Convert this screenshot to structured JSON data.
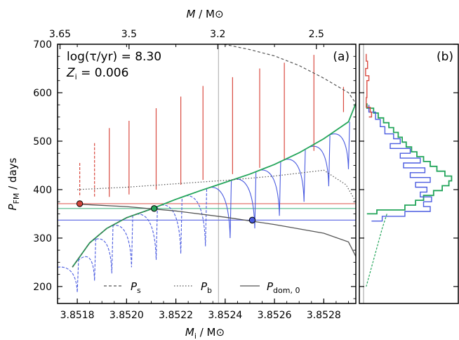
{
  "chart_data": [
    {
      "type": "line",
      "panel_label": "(a)",
      "annotation_line1": "log(τ/yr) = 8.30",
      "annotation_line2_main": "Z",
      "annotation_line2_sub": "i",
      "annotation_line2_rest": " = 0.006",
      "xlabel_main": "M",
      "xlabel_sub": "i",
      "xlabel_rest": " / M",
      "xlabel_unit_symbol": "⊙",
      "ylabel_main": "P",
      "ylabel_sub": "FM",
      "ylabel_rest": " / days",
      "top_xlabel_main": "M",
      "top_xlabel_rest": " / M",
      "top_xlabel_unit_symbol": "⊙",
      "xlim": [
        3.85172,
        3.85293
      ],
      "ylim": [
        165,
        700
      ],
      "xticks": [
        3.8518,
        3.852,
        3.8522,
        3.8524,
        3.8526,
        3.8528
      ],
      "xtick_labels": [
        "3.8518",
        "3.8520",
        "3.8522",
        "3.8524",
        "3.8526",
        "3.8528"
      ],
      "yticks": [
        200,
        300,
        400,
        500,
        600,
        700
      ],
      "ytick_labels": [
        "200",
        "300",
        "400",
        "500",
        "600",
        "700"
      ],
      "top_xticks": [
        3.85173,
        3.85201,
        3.85237,
        3.85277
      ],
      "top_xtick_labels": [
        "3.65",
        "3.5",
        "3.2",
        "2.5"
      ],
      "vertical_line_x": 3.852373,
      "hlines": [
        {
          "y": 371,
          "color": "#e0665e"
        },
        {
          "y": 361,
          "color": "#4fb887"
        },
        {
          "y": 337,
          "color": "#6a74e6"
        }
      ],
      "markers": [
        {
          "x": 3.85181,
          "y": 371,
          "fill": "#d0453c"
        },
        {
          "x": 3.852112,
          "y": 361,
          "fill": "#2aa55b"
        },
        {
          "x": 3.85251,
          "y": 337,
          "fill": "#4a5be0"
        }
      ],
      "ps_curve": [
        [
          3.85178,
          240
        ],
        [
          3.85185,
          290
        ],
        [
          3.85192,
          320
        ],
        [
          3.852,
          342
        ],
        [
          3.8521,
          360
        ],
        [
          3.8522,
          380
        ],
        [
          3.8523,
          398
        ],
        [
          3.8524,
          415
        ],
        [
          3.8525,
          432
        ],
        [
          3.8526,
          452
        ],
        [
          3.8527,
          476
        ],
        [
          3.8528,
          505
        ],
        [
          3.8529,
          540
        ],
        [
          3.85293,
          578
        ]
      ],
      "pb_curve": [
        [
          3.8518,
          400
        ],
        [
          3.852,
          405
        ],
        [
          3.8522,
          412
        ],
        [
          3.8524,
          419
        ],
        [
          3.8526,
          428
        ],
        [
          3.8528,
          440
        ],
        [
          3.85289,
          410
        ],
        [
          3.85293,
          375
        ]
      ],
      "pdom_curve": [
        [
          3.8518,
          370
        ],
        [
          3.852,
          365
        ],
        [
          3.8522,
          356
        ],
        [
          3.8524,
          343
        ],
        [
          3.8526,
          328
        ],
        [
          3.8528,
          310
        ],
        [
          3.8529,
          292
        ],
        [
          3.85293,
          262
        ]
      ],
      "upper_curve": [
        [
          3.852395,
          700
        ],
        [
          3.8525,
          689
        ],
        [
          3.8526,
          676
        ],
        [
          3.8527,
          656
        ],
        [
          3.8528,
          630
        ],
        [
          3.8529,
          600
        ],
        [
          3.85293,
          578
        ]
      ],
      "red_spikes": [
        {
          "x": 3.85181,
          "top": 455,
          "bottom": 385
        },
        {
          "x": 3.85187,
          "top": 496,
          "bottom": 385
        },
        {
          "x": 3.85193,
          "top": 527,
          "bottom": 385
        },
        {
          "x": 3.85201,
          "top": 542,
          "bottom": 390
        },
        {
          "x": 3.85212,
          "top": 568,
          "bottom": 400
        },
        {
          "x": 3.85222,
          "top": 592,
          "bottom": 410
        },
        {
          "x": 3.85231,
          "top": 614,
          "bottom": 420
        },
        {
          "x": 3.85243,
          "top": 632,
          "bottom": 432
        },
        {
          "x": 3.85254,
          "top": 650,
          "bottom": 445
        },
        {
          "x": 3.85264,
          "top": 662,
          "bottom": 460
        },
        {
          "x": 3.85276,
          "top": 678,
          "bottom": 480
        },
        {
          "x": 3.85288,
          "top": 612,
          "bottom": 560
        }
      ],
      "blue_dips": [
        {
          "x": 3.8518,
          "min": 188
        },
        {
          "x": 3.85187,
          "min": 212
        },
        {
          "x": 3.85194,
          "min": 227
        },
        {
          "x": 3.85202,
          "min": 240
        },
        {
          "x": 3.85212,
          "min": 255
        },
        {
          "x": 3.85222,
          "min": 268
        },
        {
          "x": 3.85232,
          "min": 283
        },
        {
          "x": 3.85242,
          "min": 300
        },
        {
          "x": 3.85252,
          "min": 320
        },
        {
          "x": 3.85262,
          "min": 346
        },
        {
          "x": 3.85272,
          "min": 375
        },
        {
          "x": 3.85282,
          "min": 407
        },
        {
          "x": 3.8529,
          "min": 442
        }
      ],
      "colors": {
        "green": "#23a55a",
        "blue": "#4a5be0",
        "red": "#d94a40",
        "gray_dark": "#555555",
        "gray_vline": "#b8b8b8"
      },
      "legend": [
        {
          "label_main": "P",
          "label_sub": "s",
          "style": "dashed"
        },
        {
          "label_main": "P",
          "label_sub": "b",
          "style": "dotted"
        },
        {
          "label_main": "P",
          "label_sub": "dom, 0",
          "style": "solid"
        }
      ],
      "legend_position": "bottom"
    },
    {
      "type": "histogram",
      "panel_label": "(b)",
      "ylim": [
        165,
        700
      ],
      "vertical_line_position": "left",
      "series": [
        {
          "color": "#23a55a",
          "bins": [
            [
              578,
              5
            ],
            [
              568,
              15
            ],
            [
              558,
              22
            ],
            [
              548,
              30
            ],
            [
              538,
              38
            ],
            [
              528,
              45
            ],
            [
              518,
              52
            ],
            [
              508,
              58
            ],
            [
              498,
              64
            ],
            [
              488,
              72
            ],
            [
              478,
              80
            ],
            [
              468,
              90
            ],
            [
              458,
              100
            ],
            [
              448,
              110
            ],
            [
              438,
              122
            ],
            [
              428,
              132
            ],
            [
              418,
              128
            ],
            [
              408,
              118
            ],
            [
              398,
              105
            ],
            [
              388,
              90
            ],
            [
              378,
              78
            ],
            [
              368,
              62
            ],
            [
              358,
              20
            ],
            [
              350,
              5
            ]
          ]
        },
        {
          "color": "#4a5be0",
          "bins": [
            [
              575,
              8
            ],
            [
              560,
              18
            ],
            [
              545,
              25
            ],
            [
              530,
              32
            ],
            [
              515,
              45
            ],
            [
              505,
              55
            ],
            [
              495,
              40
            ],
            [
              485,
              70
            ],
            [
              475,
              55
            ],
            [
              465,
              85
            ],
            [
              455,
              60
            ],
            [
              445,
              92
            ],
            [
              435,
              70
            ],
            [
              425,
              100
            ],
            [
              415,
              78
            ],
            [
              405,
              95
            ],
            [
              395,
              85
            ],
            [
              385,
              102
            ],
            [
              375,
              90
            ],
            [
              365,
              100
            ],
            [
              355,
              62
            ],
            [
              345,
              28
            ],
            [
              335,
              12
            ]
          ]
        },
        {
          "color": "#d94a40",
          "bins": [
            [
              680,
              4
            ],
            [
              665,
              6
            ],
            [
              650,
              3
            ],
            [
              635,
              8
            ],
            [
              625,
              5
            ],
            [
              590,
              4
            ],
            [
              570,
              10
            ],
            [
              560,
              12
            ],
            [
              550,
              8
            ]
          ]
        }
      ],
      "lower_green_dashed": [
        [
          350,
          35
        ],
        [
          320,
          28
        ],
        [
          300,
          24
        ],
        [
          280,
          20
        ],
        [
          260,
          16
        ],
        [
          240,
          12
        ],
        [
          220,
          8
        ],
        [
          200,
          4
        ]
      ]
    }
  ]
}
